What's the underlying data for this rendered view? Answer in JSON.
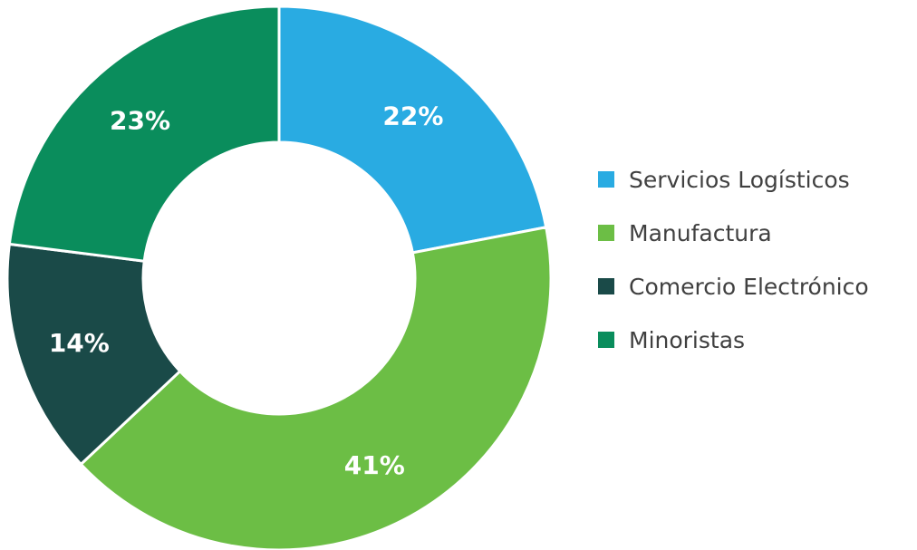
{
  "chart_data": {
    "type": "pie",
    "donut": true,
    "title": "",
    "categories": [
      "Servicios Logísticos",
      "Manufactura",
      "Comercio Electrónico",
      "Minoristas"
    ],
    "values": [
      22,
      41,
      14,
      23
    ],
    "data_labels": [
      "22%",
      "41%",
      "14%",
      "23%"
    ],
    "colors": [
      "#29ABE2",
      "#6CBE45",
      "#1A4A48",
      "#0A8D5C"
    ],
    "legend_position": "right"
  }
}
